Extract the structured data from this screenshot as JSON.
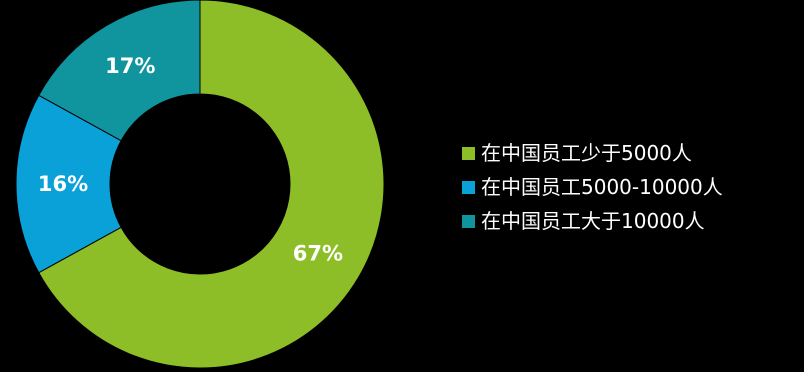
{
  "chart_data": {
    "type": "pie",
    "donut": true,
    "title": "",
    "legend_position": "right",
    "slices": [
      {
        "label": "在中国员工少于5000人",
        "value": 67,
        "display": "67%",
        "color": "#8dbe28"
      },
      {
        "label": "在中国员工5000-10000人",
        "value": 16,
        "display": "16%",
        "color": "#0aa0d8"
      },
      {
        "label": "在中国员工大于10000人",
        "value": 17,
        "display": "17%",
        "color": "#10959f"
      }
    ]
  }
}
